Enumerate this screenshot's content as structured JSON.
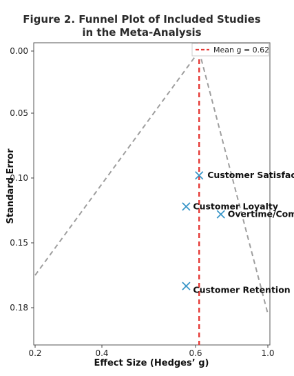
{
  "chart_data": {
    "type": "scatter",
    "title_line1": "Figure 2. Funnel Plot of Included Studies",
    "title_line2": "in the Meta-Analysis",
    "xlabel": "Effect Size (Hedges’ g)",
    "ylabel": "Standard Error",
    "xlim": [
      0.2,
      1.0
    ],
    "ylim": [
      0.0,
      0.195
    ],
    "y_inverted": true,
    "x_ticks": [
      0.2,
      0.4,
      0.6,
      1.0
    ],
    "x_tick_labels": [
      "0.2",
      "0.4",
      "0.6",
      "1.0"
    ],
    "y_ticks": [
      0.0,
      0.05,
      0.1,
      0.15,
      0.18
    ],
    "y_tick_labels": [
      "0.00",
      "0.05",
      "0.10",
      "0.15",
      "0.18"
    ],
    "grid": false,
    "legend": {
      "label": "Mean g = 0.62",
      "placement": "top-right"
    },
    "mean_line": {
      "x": 0.62,
      "color": "#e53935",
      "style": "dashed"
    },
    "funnel": {
      "apex": [
        0.62,
        0.0
      ],
      "left_end": [
        0.2,
        0.165
      ],
      "right_end": [
        1.0,
        0.183
      ],
      "color": "#9e9e9e",
      "style": "dashed"
    },
    "marker": {
      "shape": "x",
      "color": "#3a96c8"
    },
    "points": [
      {
        "label": "Customer Satisfaction",
        "x": 0.62,
        "y": 0.098
      },
      {
        "label": "Customer Loyalty",
        "x": 0.58,
        "y": 0.122
      },
      {
        "label": "Overtime/Compsen Pay",
        "x": 0.74,
        "y": 0.128
      },
      {
        "label": "Customer Retention",
        "x": 0.58,
        "y": 0.17
      }
    ]
  }
}
